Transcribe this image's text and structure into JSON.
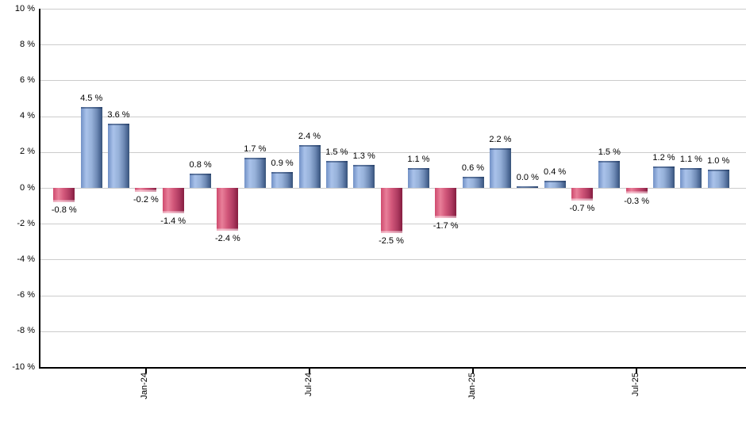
{
  "chart_data": {
    "type": "bar",
    "unit": "%",
    "values": [
      -0.8,
      4.5,
      3.6,
      -0.2,
      -1.4,
      0.8,
      -2.4,
      1.7,
      0.9,
      2.4,
      1.5,
      1.3,
      -2.5,
      1.1,
      -1.7,
      0.6,
      2.2,
      0.0,
      0.4,
      -0.7,
      1.5,
      -0.3,
      1.2,
      1.1,
      1.0
    ],
    "bar_labels": [
      "-0.8 %",
      "4.5 %",
      "3.6 %",
      "-0.2 %",
      "-1.4 %",
      "0.8 %",
      "-2.4 %",
      "1.7 %",
      "0.9 %",
      "2.4 %",
      "1.5 %",
      "1.3 %",
      "-2.5 %",
      "1.1 %",
      "-1.7 %",
      "0.6 %",
      "2.2 %",
      "0.0 %",
      "0.4 %",
      "-0.7 %",
      "1.5 %",
      "-0.3 %",
      "1.2 %",
      "1.1 %",
      "1.0 %"
    ],
    "x_ticks": [
      {
        "bar_index": 3,
        "label": "Jan-24"
      },
      {
        "bar_index": 9,
        "label": "Jul-24"
      },
      {
        "bar_index": 15,
        "label": "Jan-25"
      },
      {
        "bar_index": 21,
        "label": "Jul-25"
      }
    ],
    "y_tick_labels": [
      "10 %",
      "8 %",
      "6 %",
      "4 %",
      "2 %",
      "0 %",
      "-2 %",
      "-4 %",
      "-6 %",
      "-8 %",
      "-10 %"
    ],
    "y_tick_values": [
      10,
      8,
      6,
      4,
      2,
      0,
      -2,
      -4,
      -6,
      -8,
      -10
    ],
    "ylim": [
      -10,
      10
    ],
    "grid": true,
    "legend": "none",
    "title": "",
    "xlabel": "",
    "ylabel": "",
    "colors": {
      "positive_bar": "#6d8cbf",
      "negative_bar": "#c43a61",
      "gridline": "#cccccc",
      "axis": "#000000",
      "background": "#ffffff"
    }
  }
}
